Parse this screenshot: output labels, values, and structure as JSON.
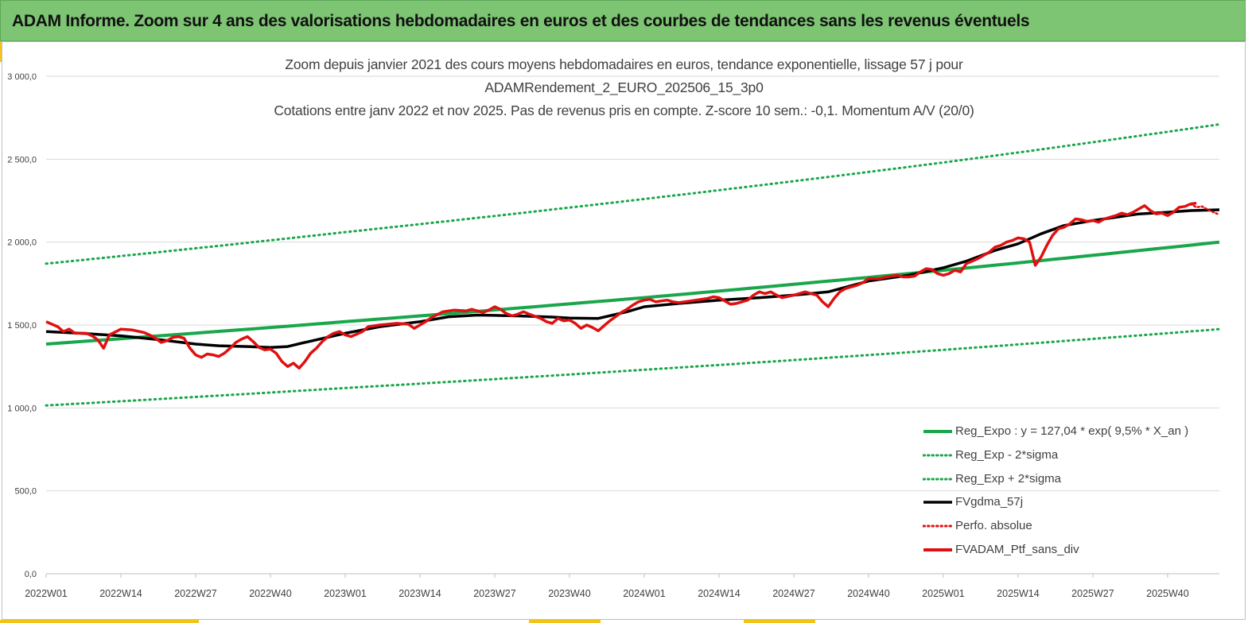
{
  "banner": {
    "title": "ADAM Informe. Zoom sur 4 ans des valorisations hebdomadaires en euros et des courbes de tendances sans les revenus éventuels"
  },
  "colors": {
    "banner_bg": "#7dc473",
    "accent": "#f2c318",
    "reg_expo": "#1aa64b",
    "sigma": "#1aa64b",
    "fvgdma": "#000000",
    "perfo": "#e01010",
    "fvadam": "#e01010",
    "grid": "#d9d9d9"
  },
  "chart_data": {
    "type": "line",
    "title_lines": [
      "Zoom depuis janvier 2021 des cours moyens hebdomadaires  en euros, tendance exponentielle, lissage 57 j pour",
      "ADAMRendement_2_EURO_202506_15_3p0",
      "Cotations  entre janv 2022 et nov 2025. Pas de revenus pris en compte. Z-score 10 sem.: -0,1. Momentum A/V (20/0)"
    ],
    "x_unit": "week index since 2022W01",
    "x_tick_labels": [
      "2022W01",
      "2022W14",
      "2022W27",
      "2022W40",
      "2023W01",
      "2023W14",
      "2023W27",
      "2023W40",
      "2024W01",
      "2024W14",
      "2024W27",
      "2024W40",
      "2025W01",
      "2025W14",
      "2025W27",
      "2025W40"
    ],
    "x_tick_values": [
      0,
      13,
      26,
      39,
      52,
      65,
      78,
      91,
      104,
      117,
      130,
      143,
      156,
      169,
      182,
      195
    ],
    "xlim": [
      0,
      204
    ],
    "ylim": [
      0,
      3000
    ],
    "y_ticks": [
      0,
      500,
      1000,
      1500,
      2000,
      2500,
      3000
    ],
    "y_tick_labels": [
      "0,0",
      "500,0",
      "1 000,0",
      "1 500,0",
      "2 000,0",
      "2 500,0",
      "3 000,0"
    ],
    "grid": "horizontal",
    "legend_position": "bottom-right",
    "legend": [
      {
        "key": "reg_expo",
        "label": "Reg_Expo : y = 127,04 * exp( 9,5% *  X_an )",
        "style": "solid-thick"
      },
      {
        "key": "sigma_minus",
        "label": "Reg_Exp - 2*sigma",
        "style": "dotted"
      },
      {
        "key": "sigma_plus",
        "label": "Reg_Exp + 2*sigma",
        "style": "dotted"
      },
      {
        "key": "fvgdma",
        "label": "FVgdma_57j",
        "style": "solid-black"
      },
      {
        "key": "perfo",
        "label": "Perfo. absolue",
        "style": "dotted-red"
      },
      {
        "key": "fvadam",
        "label": "FVADAM_Ptf_sans_div",
        "style": "solid-red"
      }
    ],
    "series": [
      {
        "name": "Reg_Expo : y = 127,04 * exp( 9,5% *  X_an )",
        "points": [
          [
            0,
            1385
          ],
          [
            52,
            1520
          ],
          [
            104,
            1665
          ],
          [
            156,
            1830
          ],
          [
            204,
            2000
          ]
        ]
      },
      {
        "name": "Reg_Exp - 2*sigma",
        "points": [
          [
            0,
            1015
          ],
          [
            52,
            1120
          ],
          [
            104,
            1230
          ],
          [
            156,
            1350
          ],
          [
            204,
            1475
          ]
        ]
      },
      {
        "name": "Reg_Exp + 2*sigma",
        "points": [
          [
            0,
            1870
          ],
          [
            52,
            2060
          ],
          [
            104,
            2260
          ],
          [
            156,
            2480
          ],
          [
            204,
            2710
          ]
        ]
      },
      {
        "name": "FVgdma_57j",
        "points": [
          [
            0,
            1460
          ],
          [
            6,
            1450
          ],
          [
            13,
            1435
          ],
          [
            20,
            1410
          ],
          [
            26,
            1385
          ],
          [
            30,
            1375
          ],
          [
            35,
            1370
          ],
          [
            39,
            1365
          ],
          [
            42,
            1370
          ],
          [
            45,
            1395
          ],
          [
            52,
            1450
          ],
          [
            58,
            1490
          ],
          [
            65,
            1520
          ],
          [
            70,
            1550
          ],
          [
            75,
            1560
          ],
          [
            78,
            1558
          ],
          [
            82,
            1555
          ],
          [
            88,
            1548
          ],
          [
            91,
            1542
          ],
          [
            96,
            1540
          ],
          [
            101,
            1580
          ],
          [
            104,
            1610
          ],
          [
            110,
            1630
          ],
          [
            117,
            1650
          ],
          [
            124,
            1665
          ],
          [
            130,
            1680
          ],
          [
            136,
            1700
          ],
          [
            143,
            1765
          ],
          [
            150,
            1800
          ],
          [
            156,
            1845
          ],
          [
            160,
            1885
          ],
          [
            165,
            1950
          ],
          [
            169,
            1990
          ],
          [
            173,
            2050
          ],
          [
            177,
            2100
          ],
          [
            182,
            2130
          ],
          [
            186,
            2150
          ],
          [
            190,
            2170
          ],
          [
            195,
            2180
          ],
          [
            199,
            2190
          ],
          [
            204,
            2195
          ]
        ]
      },
      {
        "name": "Perfo. absolue",
        "points": [
          [
            199,
            2230
          ],
          [
            200,
            2210
          ],
          [
            201,
            2215
          ],
          [
            202,
            2195
          ],
          [
            203,
            2180
          ],
          [
            204,
            2165
          ]
        ]
      },
      {
        "name": "FVADAM_Ptf_sans_div",
        "points": [
          [
            0,
            1520
          ],
          [
            2,
            1490
          ],
          [
            3,
            1460
          ],
          [
            4,
            1475
          ],
          [
            5,
            1450
          ],
          [
            7,
            1450
          ],
          [
            8,
            1435
          ],
          [
            9,
            1410
          ],
          [
            10,
            1360
          ],
          [
            11,
            1440
          ],
          [
            13,
            1475
          ],
          [
            15,
            1470
          ],
          [
            17,
            1455
          ],
          [
            18,
            1440
          ],
          [
            19,
            1420
          ],
          [
            20,
            1395
          ],
          [
            21,
            1405
          ],
          [
            22,
            1425
          ],
          [
            23,
            1430
          ],
          [
            24,
            1420
          ],
          [
            25,
            1360
          ],
          [
            26,
            1320
          ],
          [
            27,
            1305
          ],
          [
            28,
            1325
          ],
          [
            29,
            1320
          ],
          [
            30,
            1310
          ],
          [
            31,
            1330
          ],
          [
            32,
            1360
          ],
          [
            33,
            1395
          ],
          [
            34,
            1415
          ],
          [
            35,
            1430
          ],
          [
            36,
            1400
          ],
          [
            37,
            1365
          ],
          [
            38,
            1350
          ],
          [
            39,
            1355
          ],
          [
            40,
            1330
          ],
          [
            41,
            1280
          ],
          [
            42,
            1250
          ],
          [
            43,
            1270
          ],
          [
            44,
            1240
          ],
          [
            45,
            1280
          ],
          [
            46,
            1330
          ],
          [
            47,
            1360
          ],
          [
            48,
            1400
          ],
          [
            49,
            1430
          ],
          [
            50,
            1450
          ],
          [
            51,
            1460
          ],
          [
            52,
            1440
          ],
          [
            53,
            1430
          ],
          [
            55,
            1460
          ],
          [
            56,
            1490
          ],
          [
            58,
            1500
          ],
          [
            61,
            1510
          ],
          [
            63,
            1505
          ],
          [
            64,
            1480
          ],
          [
            65,
            1500
          ],
          [
            66,
            1520
          ],
          [
            67,
            1545
          ],
          [
            69,
            1580
          ],
          [
            71,
            1590
          ],
          [
            73,
            1585
          ],
          [
            74,
            1595
          ],
          [
            75,
            1585
          ],
          [
            76,
            1575
          ],
          [
            77,
            1590
          ],
          [
            78,
            1610
          ],
          [
            79,
            1595
          ],
          [
            80,
            1570
          ],
          [
            81,
            1555
          ],
          [
            82,
            1565
          ],
          [
            83,
            1580
          ],
          [
            84,
            1565
          ],
          [
            86,
            1540
          ],
          [
            87,
            1520
          ],
          [
            88,
            1510
          ],
          [
            89,
            1540
          ],
          [
            90,
            1525
          ],
          [
            91,
            1530
          ],
          [
            92,
            1510
          ],
          [
            93,
            1480
          ],
          [
            94,
            1500
          ],
          [
            95,
            1485
          ],
          [
            96,
            1465
          ],
          [
            97,
            1495
          ],
          [
            98,
            1525
          ],
          [
            99,
            1550
          ],
          [
            100,
            1575
          ],
          [
            101,
            1595
          ],
          [
            102,
            1620
          ],
          [
            103,
            1640
          ],
          [
            104,
            1650
          ],
          [
            105,
            1655
          ],
          [
            106,
            1640
          ],
          [
            107,
            1645
          ],
          [
            108,
            1650
          ],
          [
            109,
            1640
          ],
          [
            110,
            1635
          ],
          [
            111,
            1640
          ],
          [
            113,
            1650
          ],
          [
            115,
            1660
          ],
          [
            116,
            1670
          ],
          [
            117,
            1665
          ],
          [
            118,
            1645
          ],
          [
            119,
            1625
          ],
          [
            120,
            1630
          ],
          [
            122,
            1650
          ],
          [
            123,
            1680
          ],
          [
            124,
            1700
          ],
          [
            125,
            1690
          ],
          [
            126,
            1700
          ],
          [
            127,
            1680
          ],
          [
            128,
            1665
          ],
          [
            130,
            1680
          ],
          [
            132,
            1700
          ],
          [
            133,
            1690
          ],
          [
            134,
            1680
          ],
          [
            135,
            1640
          ],
          [
            136,
            1610
          ],
          [
            137,
            1660
          ],
          [
            138,
            1700
          ],
          [
            139,
            1720
          ],
          [
            141,
            1740
          ],
          [
            142,
            1755
          ],
          [
            143,
            1780
          ],
          [
            145,
            1780
          ],
          [
            146,
            1790
          ],
          [
            148,
            1800
          ],
          [
            149,
            1790
          ],
          [
            150,
            1790
          ],
          [
            151,
            1795
          ],
          [
            152,
            1820
          ],
          [
            153,
            1840
          ],
          [
            154,
            1835
          ],
          [
            155,
            1810
          ],
          [
            156,
            1800
          ],
          [
            157,
            1810
          ],
          [
            158,
            1830
          ],
          [
            159,
            1820
          ],
          [
            160,
            1870
          ],
          [
            162,
            1900
          ],
          [
            163,
            1920
          ],
          [
            164,
            1940
          ],
          [
            165,
            1970
          ],
          [
            166,
            1980
          ],
          [
            167,
            2000
          ],
          [
            168,
            2010
          ],
          [
            169,
            2025
          ],
          [
            170,
            2020
          ],
          [
            171,
            2000
          ],
          [
            172,
            1860
          ],
          [
            173,
            1910
          ],
          [
            174,
            1980
          ],
          [
            175,
            2040
          ],
          [
            176,
            2080
          ],
          [
            177,
            2090
          ],
          [
            178,
            2110
          ],
          [
            179,
            2140
          ],
          [
            180,
            2135
          ],
          [
            181,
            2125
          ],
          [
            182,
            2130
          ],
          [
            183,
            2120
          ],
          [
            184,
            2140
          ],
          [
            185,
            2150
          ],
          [
            186,
            2160
          ],
          [
            187,
            2175
          ],
          [
            188,
            2165
          ],
          [
            189,
            2180
          ],
          [
            190,
            2200
          ],
          [
            191,
            2220
          ],
          [
            192,
            2190
          ],
          [
            193,
            2170
          ],
          [
            194,
            2175
          ],
          [
            195,
            2160
          ],
          [
            196,
            2180
          ],
          [
            197,
            2210
          ],
          [
            198,
            2215
          ],
          [
            199,
            2230
          ],
          [
            200,
            2235
          ]
        ]
      }
    ]
  }
}
